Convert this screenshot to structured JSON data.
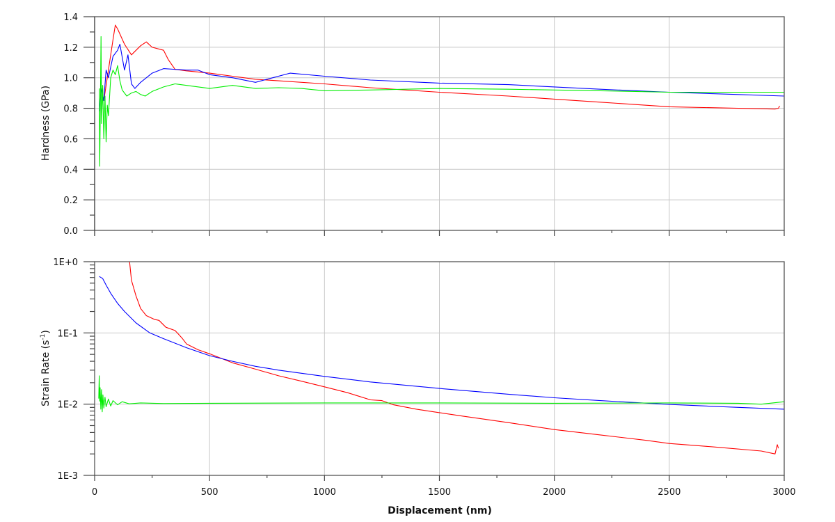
{
  "chart_data": [
    {
      "type": "line",
      "title": "",
      "xlabel": "",
      "ylabel": "Hardness (GPa)",
      "xlim": [
        0,
        3000
      ],
      "ylim": [
        0.0,
        1.4
      ],
      "yticks": [
        "0.0",
        "0.2",
        "0.4",
        "0.6",
        "0.8",
        "1.0",
        "1.2",
        "1.4"
      ],
      "grid": true,
      "legend": "none",
      "series": [
        {
          "name": "red",
          "color": "#ff0000",
          "x": [
            40,
            60,
            80,
            90,
            100,
            130,
            160,
            200,
            225,
            250,
            300,
            320,
            350,
            400,
            500,
            600,
            700,
            800,
            1000,
            1200,
            1500,
            1800,
            2000,
            2200,
            2500,
            2800,
            2960,
            2975,
            2980
          ],
          "y": [
            0.85,
            1.05,
            1.25,
            1.345,
            1.32,
            1.22,
            1.15,
            1.21,
            1.235,
            1.2,
            1.18,
            1.12,
            1.055,
            1.045,
            1.03,
            1.01,
            0.99,
            0.98,
            0.96,
            0.935,
            0.905,
            0.88,
            0.86,
            0.84,
            0.81,
            0.8,
            0.795,
            0.8,
            0.815
          ]
        },
        {
          "name": "blue",
          "color": "#0000ff",
          "x": [
            20,
            30,
            40,
            50,
            60,
            80,
            100,
            110,
            130,
            145,
            160,
            175,
            200,
            250,
            300,
            400,
            450,
            500,
            600,
            700,
            850,
            1000,
            1200,
            1500,
            1800,
            2000,
            2200,
            2500,
            2800,
            3000
          ],
          "y": [
            0.78,
            0.93,
            0.85,
            1.05,
            1.0,
            1.14,
            1.18,
            1.22,
            1.05,
            1.15,
            0.96,
            0.93,
            0.97,
            1.03,
            1.06,
            1.05,
            1.05,
            1.02,
            1.0,
            0.97,
            1.03,
            1.01,
            0.985,
            0.965,
            0.955,
            0.94,
            0.925,
            0.905,
            0.89,
            0.88
          ]
        },
        {
          "name": "green",
          "color": "#00ee00",
          "x": [
            20,
            22,
            25,
            28,
            30,
            35,
            40,
            45,
            50,
            55,
            60,
            70,
            80,
            90,
            100,
            110,
            120,
            140,
            160,
            180,
            200,
            220,
            250,
            300,
            350,
            400,
            500,
            600,
            700,
            800,
            900,
            1000,
            1200,
            1500,
            1800,
            2000,
            2200,
            2500,
            2800,
            3000
          ],
          "y": [
            0.93,
            0.42,
            0.85,
            1.27,
            0.7,
            0.95,
            0.6,
            0.88,
            0.58,
            0.82,
            0.75,
            1.0,
            1.05,
            1.02,
            1.08,
            0.98,
            0.92,
            0.88,
            0.9,
            0.91,
            0.89,
            0.88,
            0.91,
            0.94,
            0.96,
            0.95,
            0.93,
            0.95,
            0.93,
            0.935,
            0.93,
            0.915,
            0.92,
            0.93,
            0.925,
            0.92,
            0.915,
            0.905,
            0.905,
            0.905
          ]
        }
      ]
    },
    {
      "type": "line",
      "title": "",
      "xlabel": "Displacement (nm)",
      "ylabel": "Strain Rate (s⁻¹)",
      "xlim": [
        0,
        3000
      ],
      "ylim": [
        0.001,
        1.0
      ],
      "yscale": "log",
      "yticks": [
        "1E-3",
        "1E-2",
        "1E-1",
        "1E+0"
      ],
      "xticks": [
        "0",
        "500",
        "1000",
        "1500",
        "2000",
        "2500",
        "3000"
      ],
      "grid": true,
      "legend": "none",
      "series": [
        {
          "name": "red",
          "color": "#ff0000",
          "x": [
            152,
            160,
            180,
            200,
            225,
            260,
            280,
            310,
            350,
            380,
            400,
            450,
            500,
            600,
            700,
            800,
            900,
            1000,
            1100,
            1200,
            1250,
            1300,
            1400,
            1500,
            1600,
            1800,
            2000,
            2200,
            2400,
            2500,
            2700,
            2900,
            2960,
            2970,
            2975
          ],
          "y": [
            1.0,
            0.55,
            0.33,
            0.22,
            0.175,
            0.155,
            0.15,
            0.12,
            0.108,
            0.085,
            0.07,
            0.058,
            0.051,
            0.038,
            0.031,
            0.025,
            0.021,
            0.0175,
            0.0145,
            0.0115,
            0.0112,
            0.0098,
            0.0085,
            0.0076,
            0.0068,
            0.0055,
            0.0044,
            0.0037,
            0.0031,
            0.0028,
            0.0025,
            0.0022,
            0.002,
            0.0027,
            0.0024
          ]
        },
        {
          "name": "blue",
          "color": "#0000ff",
          "x": [
            20,
            35,
            50,
            70,
            100,
            130,
            180,
            240,
            300,
            400,
            500,
            600,
            700,
            800,
            1000,
            1200,
            1500,
            1800,
            2000,
            2200,
            2500,
            2800,
            3000
          ],
          "y": [
            0.62,
            0.58,
            0.47,
            0.36,
            0.26,
            0.2,
            0.138,
            0.1,
            0.083,
            0.062,
            0.048,
            0.04,
            0.034,
            0.03,
            0.0245,
            0.0205,
            0.0166,
            0.0138,
            0.0123,
            0.0112,
            0.0099,
            0.009,
            0.0085
          ]
        },
        {
          "name": "green",
          "color": "#00ee00",
          "x": [
            18,
            20,
            22,
            24,
            27,
            30,
            33,
            36,
            40,
            45,
            50,
            60,
            70,
            80,
            100,
            120,
            150,
            200,
            300,
            500,
            1000,
            1500,
            2000,
            2500,
            2800,
            2900,
            3000
          ],
          "y": [
            0.012,
            0.025,
            0.011,
            0.017,
            0.0085,
            0.016,
            0.0078,
            0.0135,
            0.0088,
            0.0125,
            0.0092,
            0.0118,
            0.0094,
            0.0112,
            0.0098,
            0.0108,
            0.0101,
            0.0104,
            0.0102,
            0.0103,
            0.0104,
            0.0104,
            0.0103,
            0.0104,
            0.0103,
            0.01,
            0.0108
          ]
        }
      ]
    }
  ],
  "labels": {
    "top_ylabel": "Hardness (GPa)",
    "bottom_ylabel_main": "Strain Rate (s",
    "bottom_ylabel_sup": "-1",
    "bottom_ylabel_close": ")",
    "xlabel": "Displacement (nm)"
  }
}
